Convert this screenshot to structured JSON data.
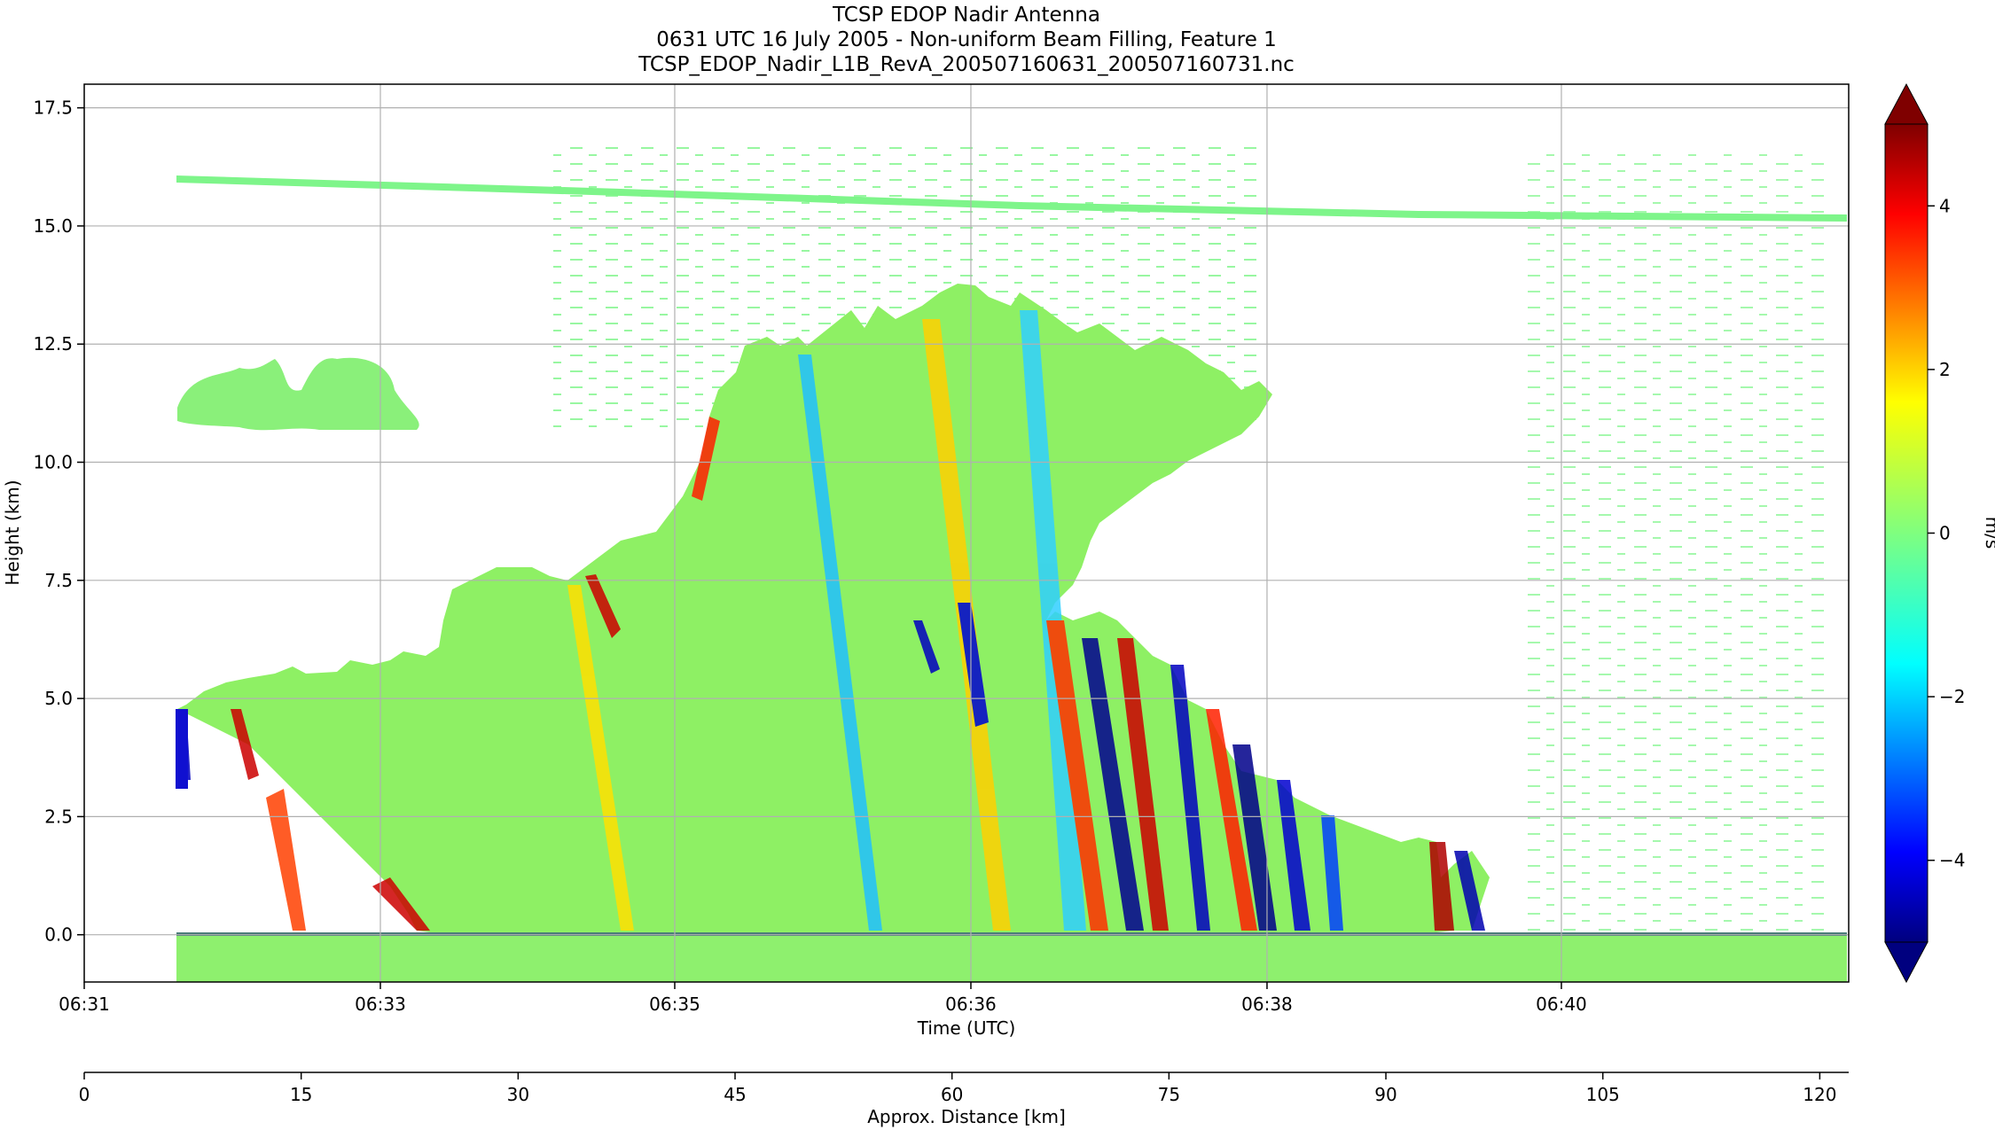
{
  "chart_data": {
    "type": "heatmap",
    "title_lines": [
      "TCSP EDOP Nadir Antenna",
      "0631 UTC 16 July 2005 - Non-uniform Beam Filling, Feature 1",
      "TCSP_EDOP_Nadir_L1B_RevA_200507160631_200507160731.nc"
    ],
    "xlabel": "Time (UTC)",
    "ylabel": "Height (km)",
    "x_ticks": [
      "06:31",
      "06:33",
      "06:35",
      "06:36",
      "06:38",
      "06:40"
    ],
    "y_ticks": [
      "0.0",
      "2.5",
      "5.0",
      "7.5",
      "10.0",
      "12.5",
      "15.0",
      "17.5"
    ],
    "y_tick_values": [
      0,
      2.5,
      5,
      7.5,
      10,
      12.5,
      15,
      17.5
    ],
    "ylim": [
      -1,
      18
    ],
    "grid": true,
    "colorbar": {
      "label": "m/s",
      "range": [
        -5,
        5
      ],
      "ticks": [
        "−4",
        "−2",
        "0",
        "2",
        "4"
      ],
      "tick_values": [
        -4,
        -2,
        0,
        2,
        4
      ],
      "colormap": "jet",
      "extend": "both"
    },
    "secondary_axis": {
      "label": "Approx. Distance [km]",
      "ticks": [
        "0",
        "15",
        "30",
        "45",
        "60",
        "75",
        "90",
        "105",
        "120"
      ],
      "tick_values": [
        0,
        15,
        30,
        45,
        60,
        75,
        90,
        105,
        120
      ],
      "range": [
        0,
        122
      ]
    }
  },
  "colors": {
    "background": "#ffffff",
    "grid": "#b0b0b0",
    "cloud_green": "#8af07a",
    "tropopause_band": "#7ef58a"
  }
}
